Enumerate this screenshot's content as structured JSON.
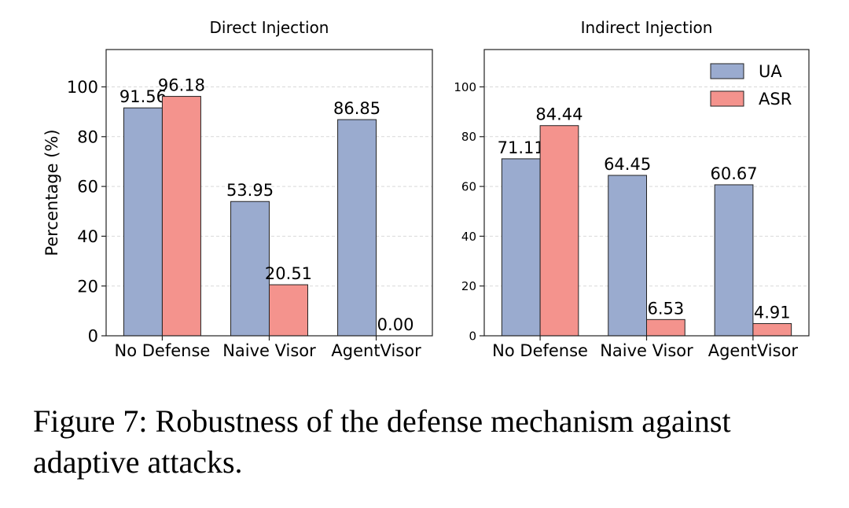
{
  "caption": "Figure 7: Robustness of the defense mechanism against adaptive attacks.",
  "colors": {
    "UA": "#9aabcf",
    "ASR": "#f4938d",
    "edge": "#222222",
    "grid": "#d9d9d9"
  },
  "chart_data": [
    {
      "type": "bar",
      "title": "Direct Injection",
      "ylabel": "Percentage (%)",
      "xlabel": "",
      "categories": [
        "No Defense",
        "Naive Visor",
        "AgentVisor"
      ],
      "series": [
        {
          "name": "UA",
          "values": [
            91.56,
            53.95,
            86.85
          ]
        },
        {
          "name": "ASR",
          "values": [
            96.18,
            20.51,
            0.0
          ]
        }
      ],
      "ylim": [
        0,
        115
      ],
      "yticks": [
        0,
        20,
        40,
        60,
        80,
        100
      ],
      "grid": "horizontal dashed",
      "legend": "none"
    },
    {
      "type": "bar",
      "title": "Indirect Injection",
      "ylabel": "",
      "xlabel": "",
      "categories": [
        "No Defense",
        "Naive Visor",
        "AgentVisor"
      ],
      "series": [
        {
          "name": "UA",
          "values": [
            71.11,
            64.45,
            60.67
          ]
        },
        {
          "name": "ASR",
          "values": [
            84.44,
            6.53,
            4.91
          ]
        }
      ],
      "ylim": [
        0,
        115
      ],
      "yticks": [
        0,
        20,
        40,
        60,
        80,
        100
      ],
      "grid": "horizontal dashed",
      "legend": "top-right"
    }
  ]
}
